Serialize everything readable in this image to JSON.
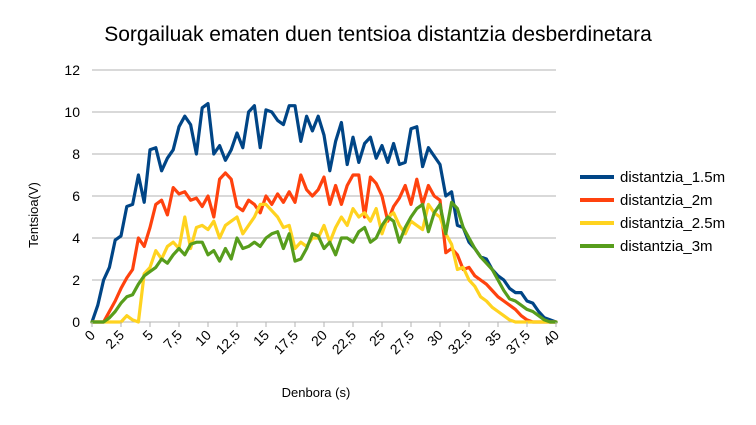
{
  "chart_data": {
    "type": "line",
    "title": "Sorgailuak ematen duen tentsioa distantzia desberdinetara",
    "xlabel": "Denbora (s)",
    "ylabel": "Tentsioa(V)",
    "xlim": [
      0,
      40
    ],
    "ylim": [
      0,
      12
    ],
    "x_ticks": [
      "0",
      "2,5",
      "5",
      "7,5",
      "10",
      "12,5",
      "15",
      "17,5",
      "20",
      "22,5",
      "25",
      "27,5",
      "30",
      "32,5",
      "35",
      "37,5",
      "40"
    ],
    "y_ticks": [
      "0",
      "2",
      "4",
      "6",
      "8",
      "10",
      "12"
    ],
    "grid": "horizontal",
    "legend_position": "right",
    "x_step": 0.5,
    "series": [
      {
        "name": "distantzia_1.5m",
        "color": "#004586",
        "values": [
          0,
          0.8,
          2.0,
          2.6,
          3.9,
          4.1,
          5.5,
          5.6,
          7.0,
          5.7,
          8.2,
          8.3,
          7.2,
          7.8,
          8.2,
          9.3,
          9.8,
          9.4,
          8.0,
          10.2,
          10.4,
          8.0,
          8.4,
          7.7,
          8.2,
          9.0,
          8.3,
          10.0,
          10.3,
          8.3,
          10.1,
          10.0,
          9.6,
          9.4,
          10.3,
          10.3,
          8.6,
          9.8,
          9.1,
          9.8,
          8.9,
          7.2,
          8.6,
          9.5,
          7.5,
          8.8,
          7.6,
          8.5,
          8.8,
          7.8,
          8.4,
          7.6,
          8.5,
          7.5,
          7.6,
          9.2,
          9.3,
          7.4,
          8.3,
          7.9,
          7.5,
          6.0,
          6.2,
          4.6,
          4.5,
          3.8,
          3.5,
          3.1,
          3.0,
          2.5,
          2.2,
          2.0,
          1.6,
          1.4,
          1.4,
          1.0,
          0.9,
          0.5,
          0.2,
          0.1,
          0
        ]
      },
      {
        "name": "distantzia_2m",
        "color": "#ff420e",
        "values": [
          0,
          0,
          0,
          0.5,
          1.0,
          1.6,
          2.1,
          2.5,
          4.0,
          3.6,
          4.5,
          5.6,
          5.8,
          5.1,
          6.4,
          6.1,
          6.2,
          5.8,
          5.9,
          5.5,
          6.0,
          5.0,
          6.8,
          7.1,
          6.8,
          5.5,
          5.3,
          5.8,
          5.6,
          5.2,
          6.0,
          5.6,
          6.1,
          5.7,
          6.2,
          5.7,
          7.0,
          6.3,
          6.0,
          6.3,
          6.9,
          5.6,
          6.5,
          5.6,
          6.5,
          7.0,
          7.0,
          5.0,
          6.9,
          6.6,
          6.0,
          4.8,
          5.5,
          5.9,
          6.5,
          5.6,
          6.8,
          5.6,
          6.5,
          6.0,
          5.8,
          3.3,
          3.5,
          3.2,
          2.5,
          2.6,
          2.2,
          2.0,
          1.8,
          1.5,
          1.2,
          1.0,
          0.8,
          0.6,
          0.3,
          0.1,
          0,
          0,
          0,
          0,
          0
        ]
      },
      {
        "name": "distantzia_2.5m",
        "color": "#ffd320",
        "values": [
          0,
          0,
          0,
          0,
          0,
          0,
          0.3,
          0.1,
          0,
          2.3,
          2.6,
          3.4,
          3.0,
          3.6,
          3.8,
          3.5,
          5.0,
          3.5,
          4.5,
          4.6,
          4.4,
          4.8,
          4.0,
          4.6,
          4.8,
          5.0,
          4.2,
          4.6,
          5.0,
          5.6,
          5.6,
          5.3,
          5.0,
          4.5,
          4.6,
          3.5,
          3.8,
          3.6,
          4.0,
          4.0,
          4.6,
          3.8,
          4.5,
          5.0,
          4.6,
          5.4,
          5.0,
          5.2,
          4.8,
          5.4,
          4.2,
          5.0,
          5.2,
          4.6,
          4.2,
          4.8,
          4.6,
          4.4,
          5.6,
          5.2,
          5.0,
          4.2,
          3.7,
          2.5,
          2.6,
          2.0,
          1.7,
          1.2,
          1.0,
          0.7,
          0.5,
          0.3,
          0.1,
          0,
          0,
          0,
          0,
          0,
          0,
          0,
          0
        ]
      },
      {
        "name": "distantzia_3m",
        "color": "#579d1c",
        "values": [
          0,
          0,
          0,
          0.2,
          0.5,
          0.9,
          1.2,
          1.3,
          1.8,
          2.2,
          2.4,
          2.6,
          3.0,
          2.8,
          3.2,
          3.5,
          3.2,
          3.7,
          3.8,
          3.8,
          3.2,
          3.4,
          2.9,
          3.5,
          3.0,
          4.0,
          3.5,
          3.6,
          3.8,
          3.6,
          4.0,
          4.2,
          4.3,
          3.5,
          4.2,
          2.9,
          3.0,
          3.5,
          4.2,
          4.1,
          3.5,
          3.8,
          3.2,
          4.0,
          4.0,
          3.8,
          4.3,
          4.5,
          3.8,
          4.0,
          4.6,
          5.0,
          4.8,
          3.8,
          4.5,
          5.0,
          5.4,
          5.6,
          4.3,
          5.2,
          5.6,
          4.2,
          5.7,
          5.4,
          4.5,
          4.0,
          3.5,
          3.1,
          2.8,
          2.5,
          2.0,
          1.5,
          1.1,
          1.0,
          0.8,
          0.6,
          0.5,
          0.3,
          0.1,
          0,
          0
        ]
      }
    ]
  }
}
